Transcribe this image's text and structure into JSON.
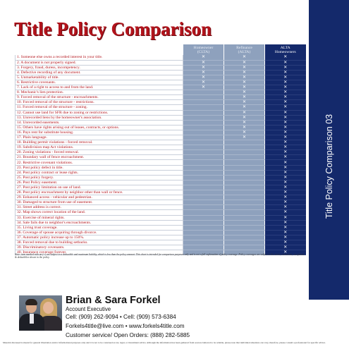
{
  "title": "Title Policy Comparison",
  "side_label": "Title Policy Comparison 03",
  "columns": [
    {
      "line1": "Homeowner",
      "line2": "(CLTA)"
    },
    {
      "line1": "Refinance",
      "line2": "(ALTA)"
    },
    {
      "line1": "ALTA",
      "line2": "Homeowners"
    }
  ],
  "mark_symbol": "✕",
  "rows": [
    {
      "label": "1. Someone else owns a recorded interest in your title.",
      "marks": [
        1,
        1,
        1
      ]
    },
    {
      "label": "2. A document is not properly signed.",
      "marks": [
        1,
        1,
        1
      ]
    },
    {
      "label": "3. Forgery, fraud, duress, incompetency.",
      "marks": [
        1,
        1,
        1
      ]
    },
    {
      "label": "4. Defective recording of any document.",
      "marks": [
        1,
        1,
        1
      ]
    },
    {
      "label": "5. Unmarketability of title.",
      "marks": [
        1,
        1,
        1
      ]
    },
    {
      "label": "6. Restrictive covenants.",
      "marks": [
        1,
        1,
        1
      ]
    },
    {
      "label": "7. Lack of a right to access to and from the land.",
      "marks": [
        1,
        1,
        1
      ]
    },
    {
      "label": "8. Mechanic's lien protection.",
      "marks": [
        0,
        1,
        1
      ]
    },
    {
      "label": "9. Forced removal of the structure - encroachments.",
      "marks": [
        0,
        1,
        1
      ]
    },
    {
      "label": "10. Forced removal of the structure - restrictions.",
      "marks": [
        0,
        1,
        1
      ]
    },
    {
      "label": "11. Forced removal of the structure - zoning.",
      "marks": [
        0,
        1,
        1
      ]
    },
    {
      "label": "12. Cannot use land for SFR due to zoning  or restrictions.",
      "marks": [
        0,
        1,
        1
      ]
    },
    {
      "label": "13. Unrecorded liens by the homeowner's association.",
      "marks": [
        0,
        1,
        1
      ]
    },
    {
      "label": "14. Unrecorded easements.",
      "marks": [
        0,
        1,
        1
      ]
    },
    {
      "label": "15. Others have rights arising out of leases, contracts, or options.",
      "marks": [
        0,
        1,
        1
      ]
    },
    {
      "label": "16. Pays rent for substitute housing.",
      "marks": [
        0,
        1,
        1
      ]
    },
    {
      "label": "17. Plain language.",
      "marks": [
        0,
        1,
        1
      ]
    },
    {
      "label": "18.  Building permit violations - forced removal.",
      "marks": [
        0,
        0,
        1
      ]
    },
    {
      "label": "19. Subdivision map Act violations.",
      "marks": [
        0,
        0,
        1
      ]
    },
    {
      "label": "20. Zoning violations - forced removal.",
      "marks": [
        0,
        0,
        1
      ]
    },
    {
      "label": "21. Boundary wall of fence encroachment.",
      "marks": [
        0,
        0,
        1
      ]
    },
    {
      "label": "22. Restrictive covenant violations.",
      "marks": [
        0,
        0,
        1
      ]
    },
    {
      "label": "23. Post policy defect in title.",
      "marks": [
        0,
        0,
        1
      ]
    },
    {
      "label": "24. Post policy contract or lease rights.",
      "marks": [
        0,
        0,
        1
      ]
    },
    {
      "label": "25. Post policy forgery.",
      "marks": [
        0,
        0,
        1
      ]
    },
    {
      "label": "26. Post Policy easement.",
      "marks": [
        0,
        0,
        1
      ]
    },
    {
      "label": "27. Post policy limitation on use of land.",
      "marks": [
        0,
        0,
        1
      ]
    },
    {
      "label": "28. Post policy encroachment by neighbor other than wall or fence.",
      "marks": [
        0,
        0,
        1
      ]
    },
    {
      "label": "29. Enhanced access - vehicular and pedestrian.",
      "marks": [
        0,
        0,
        1
      ]
    },
    {
      "label": "30. Damaged to structure from use of easement.",
      "marks": [
        0,
        0,
        1
      ]
    },
    {
      "label": "31. Street address is correct.",
      "marks": [
        0,
        0,
        1
      ]
    },
    {
      "label": "32. Map shows correct location of the land.",
      "marks": [
        0,
        0,
        1
      ]
    },
    {
      "label": "33. Exercise of mineral rights.",
      "marks": [
        0,
        0,
        1
      ]
    },
    {
      "label": "34. Sale fails due to neighbor's encroachments.",
      "marks": [
        0,
        0,
        1
      ]
    },
    {
      "label": "35. Living trust coverage.",
      "marks": [
        0,
        0,
        1
      ]
    },
    {
      "label": "36. Coverage of spouse acquiring through divorce.",
      "marks": [
        0,
        0,
        1
      ]
    },
    {
      "label": "37. Automatic policy increase up to 150%.",
      "marks": [
        0,
        0,
        1
      ]
    },
    {
      "label": "38. Forced removal due to building setbacks.",
      "marks": [
        0,
        0,
        1
      ]
    },
    {
      "label": "39. Discriminatory covenants.",
      "marks": [
        0,
        0,
        1
      ]
    },
    {
      "label": "40. Insurance coverage forever.",
      "marks": [
        0,
        0,
        1
      ]
    }
  ],
  "note": "Note: item marked with an (+) are subject to a deductible and maximum liability, which is less than the policy amount. This chart is intended for comparison purposes only and is not a full explanation of policy coverage. Policy coverages are subject to the terms, exclusions, exceptions & deductibles shown in the policy.",
  "agent": {
    "name": "Brian & Sara Forkel",
    "title": "Account Executive",
    "phone": "Cell: (909) 262-9094 • Cell: (909) 573-6384",
    "email": "Forkels4title@live.com • www.forkels4title.com",
    "service": "Customer service/ Open Orders: (888) 282-5885"
  },
  "disclaimer": "Material discussed is meant for general illustration and/or informational purposes only and it is not to be construed as tax, legal, or investment advice. Although the information has been gathered from sources believed to be reliable, please note that individual situations can vary, therefore, please consult a professional for specific advice.",
  "colors": {
    "title_red": "#b3131b",
    "navy": "#14296b",
    "light_column": "#8ea1bd"
  }
}
